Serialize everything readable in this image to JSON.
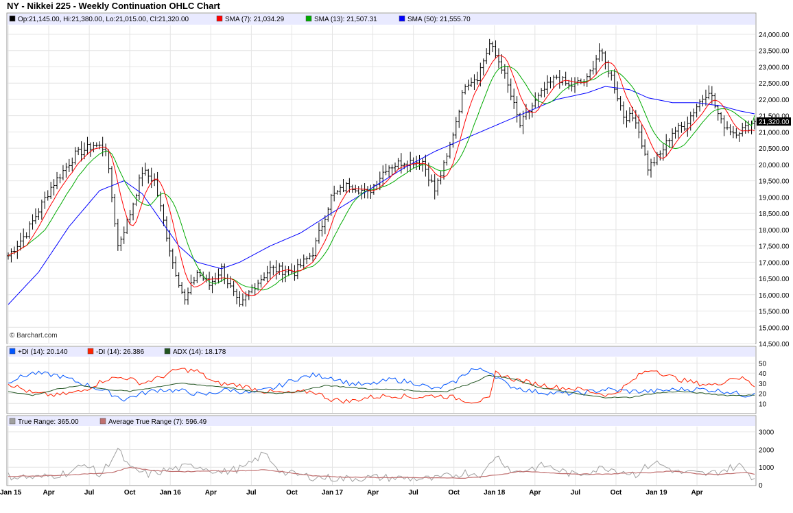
{
  "header": {
    "title": "NY - Nikkei 225 - Weekly Continuation OHLC Chart"
  },
  "colors": {
    "sma7": "#ff0000",
    "sma13": "#00aa00",
    "sma50": "#0000ff",
    "plus_di": "#0055ff",
    "minus_di": "#ff2200",
    "adx": "#225522",
    "true_range": "#a0a0a0",
    "atr": "#c07070",
    "bars": "#000000",
    "legend_bg": "#e9eaff",
    "grid": "#e4e4e4"
  },
  "chart_data": [
    {
      "type": "ohlc",
      "panel": "price",
      "legend": [
        {
          "text": "Op:21,145.00, Hi:21,380.00, Lo:21,015.00, Cl:21,320.00",
          "swatch": "#000000"
        },
        {
          "text": "SMA (7): 21,034.29",
          "swatch": "#ff0000"
        },
        {
          "text": "SMA (13): 21,507.31",
          "swatch": "#00aa00"
        },
        {
          "text": "SMA (50): 21,555.70",
          "swatch": "#0000ff"
        }
      ],
      "watermark": "© Barchart.com",
      "last_price_label": "21,320.00",
      "ylim": [
        14500,
        24000
      ],
      "y_ticks": [
        "24,000.00",
        "23,500.00",
        "23,000.00",
        "22,500.00",
        "22,000.00",
        "21,500.00",
        "21,000.00",
        "20,500.00",
        "20,000.00",
        "19,500.00",
        "19,000.00",
        "18,500.00",
        "18,000.00",
        "17,500.00",
        "17,000.00",
        "16,500.00",
        "16,000.00",
        "15,500.00",
        "15,000.00",
        "14,500.00"
      ],
      "close_path": [
        [
          0,
          17200
        ],
        [
          6,
          17900
        ],
        [
          14,
          19300
        ],
        [
          22,
          20300
        ],
        [
          28,
          20600
        ],
        [
          32,
          20500
        ],
        [
          36,
          17500
        ],
        [
          40,
          18500
        ],
        [
          44,
          19800
        ],
        [
          48,
          19500
        ],
        [
          54,
          17000
        ],
        [
          58,
          15800
        ],
        [
          62,
          16700
        ],
        [
          66,
          16300
        ],
        [
          70,
          16800
        ],
        [
          76,
          15600
        ],
        [
          80,
          16200
        ],
        [
          86,
          16800
        ],
        [
          94,
          16700
        ],
        [
          100,
          17300
        ],
        [
          106,
          19000
        ],
        [
          112,
          19400
        ],
        [
          118,
          19100
        ],
        [
          124,
          19900
        ],
        [
          130,
          20100
        ],
        [
          136,
          20100
        ],
        [
          140,
          19200
        ],
        [
          144,
          20200
        ],
        [
          150,
          22500
        ],
        [
          154,
          22700
        ],
        [
          158,
          23700
        ],
        [
          162,
          23000
        ],
        [
          168,
          21200
        ],
        [
          172,
          21800
        ],
        [
          176,
          22300
        ],
        [
          180,
          22700
        ],
        [
          184,
          22400
        ],
        [
          190,
          22600
        ],
        [
          194,
          23500
        ],
        [
          198,
          22700
        ],
        [
          202,
          21500
        ],
        [
          206,
          21400
        ],
        [
          210,
          19900
        ],
        [
          214,
          20300
        ],
        [
          218,
          21000
        ],
        [
          222,
          21200
        ],
        [
          226,
          21800
        ],
        [
          230,
          22300
        ],
        [
          234,
          21300
        ],
        [
          238,
          21000
        ],
        [
          242,
          21100
        ],
        [
          245,
          21320
        ]
      ],
      "sma50_path": [
        [
          0,
          15700
        ],
        [
          10,
          16700
        ],
        [
          20,
          18100
        ],
        [
          30,
          19200
        ],
        [
          38,
          19500
        ],
        [
          44,
          19100
        ],
        [
          50,
          18300
        ],
        [
          56,
          17500
        ],
        [
          62,
          17000
        ],
        [
          70,
          16800
        ],
        [
          76,
          17000
        ],
        [
          86,
          17500
        ],
        [
          96,
          17900
        ],
        [
          106,
          18500
        ],
        [
          118,
          19200
        ],
        [
          130,
          19900
        ],
        [
          140,
          20400
        ],
        [
          150,
          20800
        ],
        [
          160,
          21200
        ],
        [
          170,
          21600
        ],
        [
          180,
          22000
        ],
        [
          190,
          22200
        ],
        [
          196,
          22400
        ],
        [
          204,
          22300
        ],
        [
          210,
          22050
        ],
        [
          218,
          21900
        ],
        [
          226,
          21900
        ],
        [
          234,
          21800
        ],
        [
          240,
          21650
        ],
        [
          245,
          21555.7
        ]
      ],
      "sma7_last": 21034.29,
      "sma13_last": 21507.31
    },
    {
      "type": "line",
      "panel": "dmi",
      "legend": [
        {
          "text": "+DI (14): 20.140",
          "swatch": "#0055ff"
        },
        {
          "text": "-DI (14): 26.386",
          "swatch": "#ff2200"
        },
        {
          "text": "ADX (14): 18.178",
          "swatch": "#225522"
        }
      ],
      "ylim": [
        0,
        55
      ],
      "y_ticks": [
        "50",
        "40",
        "30",
        "20",
        "10"
      ],
      "plus_di_path": [
        [
          0,
          32
        ],
        [
          8,
          40
        ],
        [
          16,
          38
        ],
        [
          24,
          30
        ],
        [
          32,
          22
        ],
        [
          38,
          14
        ],
        [
          44,
          20
        ],
        [
          50,
          24
        ],
        [
          58,
          22
        ],
        [
          64,
          18
        ],
        [
          72,
          24
        ],
        [
          80,
          20
        ],
        [
          88,
          26
        ],
        [
          94,
          34
        ],
        [
          100,
          38
        ],
        [
          106,
          36
        ],
        [
          112,
          30
        ],
        [
          118,
          28
        ],
        [
          126,
          34
        ],
        [
          134,
          30
        ],
        [
          140,
          24
        ],
        [
          146,
          30
        ],
        [
          152,
          44
        ],
        [
          158,
          42
        ],
        [
          164,
          28
        ],
        [
          172,
          22
        ],
        [
          180,
          20
        ],
        [
          188,
          20
        ],
        [
          196,
          24
        ],
        [
          204,
          22
        ],
        [
          212,
          22
        ],
        [
          220,
          24
        ],
        [
          228,
          24
        ],
        [
          236,
          22
        ],
        [
          242,
          18
        ],
        [
          245,
          20.14
        ]
      ],
      "minus_di_path": [
        [
          0,
          30
        ],
        [
          8,
          20
        ],
        [
          16,
          18
        ],
        [
          24,
          22
        ],
        [
          32,
          34
        ],
        [
          38,
          36
        ],
        [
          44,
          30
        ],
        [
          50,
          36
        ],
        [
          56,
          44
        ],
        [
          62,
          42
        ],
        [
          68,
          30
        ],
        [
          76,
          28
        ],
        [
          84,
          22
        ],
        [
          92,
          20
        ],
        [
          100,
          22
        ],
        [
          106,
          14
        ],
        [
          112,
          12
        ],
        [
          118,
          16
        ],
        [
          126,
          18
        ],
        [
          134,
          16
        ],
        [
          140,
          18
        ],
        [
          146,
          16
        ],
        [
          152,
          12
        ],
        [
          158,
          14
        ],
        [
          160,
          40
        ],
        [
          166,
          34
        ],
        [
          172,
          30
        ],
        [
          180,
          26
        ],
        [
          188,
          24
        ],
        [
          194,
          20
        ],
        [
          198,
          18
        ],
        [
          204,
          30
        ],
        [
          208,
          40
        ],
        [
          212,
          44
        ],
        [
          216,
          38
        ],
        [
          220,
          34
        ],
        [
          226,
          30
        ],
        [
          232,
          28
        ],
        [
          238,
          36
        ],
        [
          242,
          34
        ],
        [
          245,
          26.386
        ]
      ],
      "adx_path": [
        [
          0,
          22
        ],
        [
          8,
          18
        ],
        [
          16,
          24
        ],
        [
          24,
          28
        ],
        [
          32,
          24
        ],
        [
          40,
          22
        ],
        [
          48,
          26
        ],
        [
          56,
          30
        ],
        [
          64,
          28
        ],
        [
          72,
          26
        ],
        [
          80,
          22
        ],
        [
          88,
          20
        ],
        [
          96,
          22
        ],
        [
          104,
          28
        ],
        [
          112,
          26
        ],
        [
          120,
          24
        ],
        [
          128,
          24
        ],
        [
          136,
          22
        ],
        [
          144,
          22
        ],
        [
          152,
          30
        ],
        [
          158,
          38
        ],
        [
          166,
          34
        ],
        [
          174,
          26
        ],
        [
          182,
          22
        ],
        [
          190,
          18
        ],
        [
          196,
          16
        ],
        [
          204,
          16
        ],
        [
          212,
          20
        ],
        [
          220,
          22
        ],
        [
          228,
          20
        ],
        [
          236,
          18
        ],
        [
          245,
          18.178
        ]
      ]
    },
    {
      "type": "line",
      "panel": "true-range",
      "legend": [
        {
          "text": "True Range: 365.00",
          "swatch": "#a0a0a0"
        },
        {
          "text": "Average True Range (7): 596.49",
          "swatch": "#c07070"
        }
      ],
      "ylim": [
        0,
        3300
      ],
      "y_ticks": [
        "3000",
        "2000",
        "1000",
        "0"
      ],
      "tr_path": [
        [
          0,
          500
        ],
        [
          10,
          400
        ],
        [
          20,
          700
        ],
        [
          26,
          1200
        ],
        [
          30,
          500
        ],
        [
          36,
          2000
        ],
        [
          40,
          900
        ],
        [
          46,
          600
        ],
        [
          54,
          900
        ],
        [
          62,
          1100
        ],
        [
          70,
          700
        ],
        [
          78,
          1000
        ],
        [
          84,
          1800
        ],
        [
          90,
          700
        ],
        [
          100,
          450
        ],
        [
          110,
          350
        ],
        [
          120,
          420
        ],
        [
          130,
          380
        ],
        [
          140,
          320
        ],
        [
          150,
          700
        ],
        [
          156,
          600
        ],
        [
          160,
          1700
        ],
        [
          166,
          700
        ],
        [
          176,
          1100
        ],
        [
          186,
          550
        ],
        [
          196,
          1000
        ],
        [
          206,
          600
        ],
        [
          212,
          1300
        ],
        [
          220,
          700
        ],
        [
          230,
          600
        ],
        [
          240,
          1100
        ],
        [
          245,
          365
        ]
      ],
      "atr_path": [
        [
          0,
          480
        ],
        [
          12,
          520
        ],
        [
          24,
          600
        ],
        [
          34,
          700
        ],
        [
          40,
          1000
        ],
        [
          48,
          800
        ],
        [
          58,
          750
        ],
        [
          66,
          800
        ],
        [
          74,
          780
        ],
        [
          84,
          850
        ],
        [
          92,
          700
        ],
        [
          100,
          520
        ],
        [
          110,
          440
        ],
        [
          120,
          420
        ],
        [
          130,
          410
        ],
        [
          140,
          400
        ],
        [
          150,
          380
        ],
        [
          156,
          480
        ],
        [
          162,
          600
        ],
        [
          168,
          760
        ],
        [
          176,
          700
        ],
        [
          186,
          620
        ],
        [
          196,
          600
        ],
        [
          204,
          680
        ],
        [
          212,
          700
        ],
        [
          218,
          800
        ],
        [
          226,
          620
        ],
        [
          234,
          600
        ],
        [
          242,
          700
        ],
        [
          245,
          596.49
        ]
      ]
    }
  ],
  "x_axis": {
    "ticks": [
      "Jan 15",
      "Apr",
      "Jul",
      "Oct",
      "Jan 16",
      "Apr",
      "Jul",
      "Oct",
      "Jan 17",
      "Apr",
      "Jul",
      "Oct",
      "Jan 18",
      "Apr",
      "Jul",
      "Oct",
      "Jan 19",
      "Apr"
    ]
  }
}
